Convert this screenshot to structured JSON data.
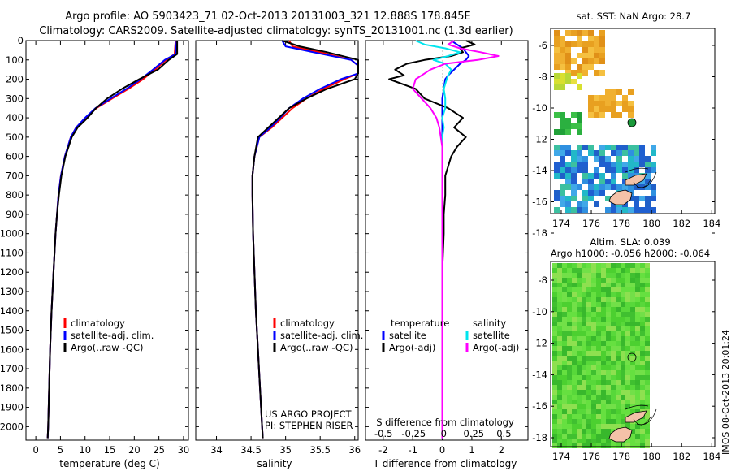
{
  "header": {
    "line1": "Argo profile: AO 5903423_71 02-Oct-2013 20131003_321 12.888S 178.845E",
    "line2": "Climatology: CARS2009. Satellite-adjusted climatology: synTS_20131001.nc (1.3d earlier)"
  },
  "colors": {
    "climatology": "#ff0000",
    "satellite": "#0000ff",
    "argo": "#000000",
    "sat_salinity": "#00e5ee",
    "argo_salinity": "#ff00ff",
    "float_marker": "#1a9a3a"
  },
  "panels": {
    "temperature": {
      "xlabel": "temperature (deg C)",
      "legend": [
        "climatology",
        "satellite-adj. clim.",
        "Argo(..raw -QC)"
      ]
    },
    "salinity": {
      "xlabel": "salinity",
      "legend": [
        "climatology",
        "satellite-adj. clim.",
        "Argo(..raw -QC)"
      ],
      "credit1": "US ARGO PROJECT",
      "credit2": "PI: STEPHEN RISER"
    },
    "difference": {
      "xlabel": "T difference from climatology",
      "top_axis_label": "S difference from climatology",
      "legend_titles": [
        "temperature",
        "salinity"
      ],
      "legend_items": [
        "satellite",
        "Argo(-adj)",
        "satellite",
        "Argo(-adj)"
      ]
    }
  },
  "maps": {
    "sst": {
      "title": "sat. SST: NaN Argo: 28.7"
    },
    "sla": {
      "title1": "Altim. SLA: 0.039",
      "title2": "Argo h1000: -0.056 h2000: -0.064"
    },
    "footer": "IMOS 08-Oct-2013 20:01:24"
  },
  "chart_data": [
    {
      "type": "line",
      "name": "temperature",
      "xlabel": "temperature (deg C)",
      "xlim": [
        -2,
        31
      ],
      "ylim": [
        2070,
        0
      ],
      "xticks": [
        "0",
        "5",
        "10",
        "15",
        "20",
        "25",
        "30"
      ],
      "yticks": [
        "0",
        "100",
        "200",
        "300",
        "400",
        "500",
        "600",
        "700",
        "800",
        "900",
        "1000",
        "1100",
        "1200",
        "1300",
        "1400",
        "1500",
        "1600",
        "1700",
        "1800",
        "1900",
        "2000"
      ],
      "depth": [
        0,
        70,
        100,
        150,
        200,
        250,
        300,
        350,
        400,
        450,
        500,
        600,
        700,
        800,
        900,
        1000,
        1200,
        1400,
        1600,
        1800,
        2000,
        2060
      ],
      "series": [
        {
          "name": "climatology",
          "values": [
            28.4,
            28.2,
            26.5,
            24.2,
            21.8,
            18.8,
            15.5,
            12.3,
            10.1,
            8.2,
            7.1,
            5.9,
            5.1,
            4.6,
            4.3,
            4.0,
            3.6,
            3.2,
            2.9,
            2.7,
            2.5,
            2.4
          ]
        },
        {
          "name": "satellite-adj. clim.",
          "values": [
            28.6,
            28.4,
            26.2,
            23.8,
            21.3,
            18.4,
            15.2,
            12.1,
            10.0,
            8.2,
            7.1,
            5.9,
            5.1,
            4.6,
            4.3,
            4.0,
            3.6,
            3.2,
            2.9,
            2.7,
            2.5,
            2.4
          ]
        },
        {
          "name": "Argo(..raw -QC)",
          "values": [
            28.7,
            28.7,
            27.0,
            24.8,
            21.0,
            17.5,
            14.5,
            12.2,
            10.5,
            8.5,
            7.3,
            6.0,
            5.2,
            4.7,
            4.3,
            4.0,
            3.6,
            3.2,
            2.9,
            2.7,
            2.5,
            2.4
          ]
        }
      ]
    },
    {
      "type": "line",
      "name": "salinity",
      "xlabel": "salinity",
      "xlim": [
        33.7,
        36.05
      ],
      "ylim": [
        2070,
        0
      ],
      "xticks": [
        "34",
        "34.5",
        "35",
        "35.5",
        "36"
      ],
      "depth": [
        0,
        30,
        60,
        100,
        130,
        170,
        200,
        250,
        300,
        350,
        400,
        450,
        500,
        600,
        700,
        800,
        1000,
        1200,
        1400,
        1600,
        1800,
        2000,
        2060
      ],
      "series": [
        {
          "name": "climatology",
          "values": [
            35.05,
            35.1,
            35.5,
            35.95,
            36.1,
            36.1,
            35.85,
            35.55,
            35.3,
            35.1,
            34.95,
            34.8,
            34.62,
            34.55,
            34.52,
            34.52,
            34.53,
            34.55,
            34.57,
            34.6,
            34.63,
            34.66,
            34.67
          ]
        },
        {
          "name": "satellite-adj. clim.",
          "values": [
            34.95,
            35.0,
            35.4,
            35.95,
            36.1,
            36.1,
            35.8,
            35.5,
            35.25,
            35.05,
            34.92,
            34.78,
            34.62,
            34.55,
            34.52,
            34.52,
            34.53,
            34.55,
            34.57,
            34.6,
            34.63,
            34.66,
            34.67
          ]
        },
        {
          "name": "Argo(..raw -QC)",
          "values": [
            34.95,
            35.2,
            35.6,
            36.1,
            36.1,
            36.1,
            36.0,
            35.6,
            35.3,
            35.05,
            34.9,
            34.75,
            34.6,
            34.55,
            34.52,
            34.52,
            34.53,
            34.55,
            34.57,
            34.6,
            34.63,
            34.66,
            34.67
          ]
        }
      ]
    },
    {
      "type": "line",
      "name": "difference",
      "xlabel": "T difference from climatology",
      "top_axis_label": "S difference from climatology",
      "xlim": [
        -2.6,
        2.9
      ],
      "ylim": [
        2070,
        0
      ],
      "xticks": [
        "-2",
        "-1",
        "0",
        "1",
        "2"
      ],
      "top_xticks": [
        "-0.5",
        "-0.25",
        "0",
        "0.25",
        "0.5"
      ],
      "depth": [
        0,
        20,
        40,
        60,
        80,
        100,
        120,
        150,
        180,
        200,
        250,
        300,
        350,
        400,
        450,
        500,
        550,
        600,
        700,
        800,
        900,
        1000,
        1200,
        1500,
        1800,
        2000,
        2060
      ],
      "series": [
        {
          "name": "temperature satellite",
          "values": [
            0.3,
            0.5,
            0.7,
            0.8,
            0.9,
            0.8,
            0.6,
            0.4,
            0.2,
            0.1,
            0.05,
            0.0,
            0.0,
            0.0,
            0.0,
            0.0,
            0.0,
            0.0,
            0.0,
            0.0,
            0.0,
            0.0,
            0.0,
            0.0,
            0.0,
            0.0,
            0.0
          ]
        },
        {
          "name": "temperature Argo(-adj)",
          "values": [
            0.8,
            1.1,
            0.6,
            0.7,
            0.3,
            -0.6,
            -1.2,
            -1.6,
            -1.3,
            -1.8,
            -0.9,
            -0.6,
            0.2,
            0.7,
            0.4,
            0.8,
            0.5,
            0.3,
            0.1,
            0.1,
            0.05,
            0.05,
            0.0,
            0.0,
            0.0,
            0.0,
            0.0
          ]
        },
        {
          "name": "salinity satellite",
          "values": [
            -0.9,
            -0.6,
            0.1,
            0.6,
            0.2,
            -0.3,
            0.1,
            0.3,
            0.2,
            0.15,
            0.05,
            0.1,
            0.1,
            0.0,
            0.05,
            0.0,
            0.0,
            0.0,
            0.0,
            0.0,
            0.0,
            0.0,
            0.0,
            0.0,
            0.0,
            0.0,
            0.0
          ]
        },
        {
          "name": "salinity Argo(-adj)",
          "values": [
            0.4,
            0.2,
            0.6,
            1.3,
            1.9,
            1.2,
            0.1,
            -0.4,
            -0.7,
            -0.9,
            -1.0,
            -0.7,
            -0.4,
            -0.2,
            -0.1,
            -0.05,
            0.0,
            0.0,
            0.0,
            0.0,
            0.0,
            0.0,
            0.0,
            0.0,
            0.0,
            0.0,
            0.0
          ]
        }
      ]
    }
  ],
  "map_axes": {
    "lon_ticks": [
      "174",
      "176",
      "178",
      "180",
      "182",
      "184"
    ],
    "sst_lat_ticks": [
      "-6",
      "-8",
      "-10",
      "-12",
      "-14",
      "-16",
      "-18"
    ],
    "sla_lat_ticks": [
      "-8",
      "-10",
      "-12",
      "-14",
      "-16",
      "-18"
    ]
  }
}
